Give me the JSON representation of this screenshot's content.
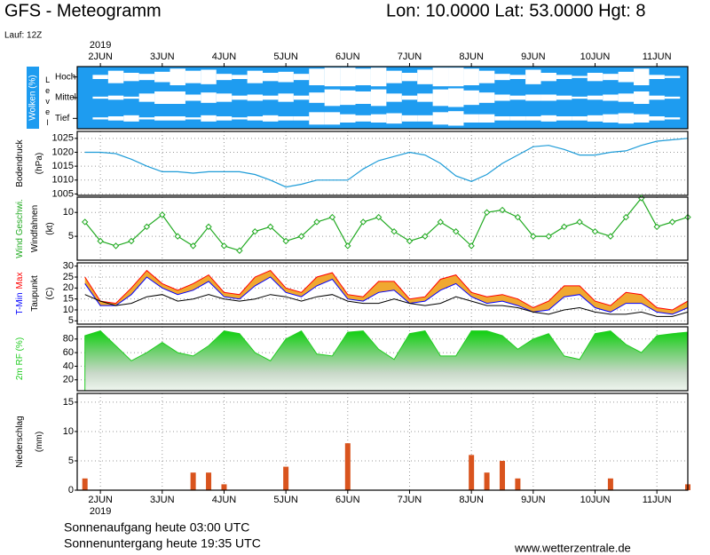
{
  "header": {
    "title": "GFS - Meteogramm",
    "location": "Lon: 10.0000 Lat: 53.0000 Hgt: 8",
    "run": "Lauf: 12Z"
  },
  "footer": {
    "sunrise": "Sonnenaufgang heute 03:00 UTC",
    "sunset": "Sonnenuntergang heute 19:35 UTC",
    "source": "www.wetterzentrale.de"
  },
  "chart_data": [
    {
      "type": "heatmap",
      "ylabel": [
        "Wolken (%)"
      ],
      "level_label": "Level",
      "background": "#1e9cf0",
      "year": "2019",
      "xlim": [
        1.625,
        11.5
      ],
      "xticks": [
        {
          "value": 2,
          "label": "2JUN"
        },
        {
          "value": 3,
          "label": "3JUN"
        },
        {
          "value": 4,
          "label": "4JUN"
        },
        {
          "value": 5,
          "label": "5JUN"
        },
        {
          "value": 6,
          "label": "6JUN"
        },
        {
          "value": 7,
          "label": "7JUN"
        },
        {
          "value": 8,
          "label": "8JUN"
        },
        {
          "value": 9,
          "label": "9JUN"
        },
        {
          "value": 10,
          "label": "10JUN"
        },
        {
          "value": 11,
          "label": "11JUN"
        }
      ],
      "x": [
        1.75,
        2,
        2.25,
        2.5,
        2.75,
        3,
        3.25,
        3.5,
        3.75,
        4,
        4.25,
        4.5,
        4.75,
        5,
        5.25,
        5.5,
        5.75,
        6,
        6.25,
        6.5,
        6.75,
        7,
        7.25,
        7.5,
        7.75,
        8,
        8.25,
        8.5,
        8.75,
        9,
        9.25,
        9.5,
        9.75,
        10,
        10.25,
        10.5,
        10.75,
        11,
        11.25,
        11.5
      ],
      "series": [
        {
          "name": "Hoch",
          "color": "#ffffff",
          "values": [
            0,
            20,
            60,
            40,
            30,
            50,
            80,
            60,
            70,
            30,
            20,
            60,
            40,
            50,
            30,
            80,
            90,
            90,
            80,
            90,
            60,
            40,
            70,
            90,
            90,
            80,
            60,
            30,
            20,
            70,
            40,
            20,
            10,
            40,
            30,
            50,
            80,
            20,
            10,
            0
          ]
        },
        {
          "name": "Mittel",
          "color": "#ffffff",
          "values": [
            0,
            10,
            20,
            10,
            40,
            60,
            60,
            30,
            50,
            40,
            20,
            30,
            20,
            40,
            20,
            50,
            80,
            70,
            60,
            80,
            40,
            20,
            40,
            80,
            90,
            70,
            50,
            30,
            20,
            30,
            30,
            20,
            10,
            20,
            30,
            40,
            60,
            20,
            10,
            0
          ]
        },
        {
          "name": "Tief",
          "color": "#ffffff",
          "values": [
            0,
            10,
            20,
            30,
            10,
            20,
            20,
            10,
            30,
            20,
            10,
            20,
            30,
            20,
            20,
            60,
            60,
            40,
            30,
            40,
            50,
            30,
            30,
            60,
            70,
            40,
            40,
            20,
            20,
            20,
            30,
            20,
            20,
            30,
            40,
            50,
            40,
            20,
            10,
            0
          ]
        }
      ]
    },
    {
      "type": "line",
      "ylabel": [
        "Bodendruck",
        "(hPa)"
      ],
      "xlim": [
        1.625,
        11.5
      ],
      "ylim": [
        1004.5,
        1027.5
      ],
      "yticks": [
        1005,
        1010,
        1015,
        1020,
        1025
      ],
      "grid": true,
      "x": [
        1.75,
        2,
        2.25,
        2.5,
        2.75,
        3,
        3.25,
        3.5,
        3.75,
        4,
        4.25,
        4.5,
        4.75,
        5,
        5.25,
        5.5,
        5.75,
        6,
        6.25,
        6.5,
        6.75,
        7,
        7.25,
        7.5,
        7.75,
        8,
        8.25,
        8.5,
        8.75,
        9,
        9.25,
        9.5,
        9.75,
        10,
        10.25,
        10.5,
        10.75,
        11,
        11.25,
        11.5
      ],
      "series": [
        {
          "color": "#1e9cd8",
          "values": [
            1020,
            1020,
            1019.5,
            1017.5,
            1015,
            1013,
            1013,
            1012.5,
            1013,
            1013,
            1013,
            1012,
            1010,
            1007.5,
            1008.5,
            1010,
            1010,
            1010,
            1014,
            1017,
            1018.5,
            1020,
            1019,
            1016,
            1011.5,
            1009.5,
            1012,
            1016,
            1019,
            1022,
            1022.5,
            1021,
            1019,
            1019,
            1020,
            1020.5,
            1022.5,
            1024,
            1024.5,
            1025
          ]
        }
      ]
    },
    {
      "type": "line",
      "ylabel": [
        "Windfahnen",
        "(kt)"
      ],
      "markers": true,
      "xlim": [
        1.625,
        11.5
      ],
      "ylim": [
        0,
        13.2
      ],
      "yticks": [
        5,
        10
      ],
      "grid": true,
      "x": [
        1.75,
        2,
        2.25,
        2.5,
        2.75,
        3,
        3.25,
        3.5,
        3.75,
        4,
        4.25,
        4.5,
        4.75,
        5,
        5.25,
        5.5,
        5.75,
        6,
        6.25,
        6.5,
        6.75,
        7,
        7.25,
        7.5,
        7.75,
        8,
        8.25,
        8.5,
        8.75,
        9,
        9.25,
        9.5,
        9.75,
        10,
        10.25,
        10.5,
        10.75,
        11,
        11.25,
        11.5
      ],
      "series": [
        {
          "name": "Wind Geschwi.",
          "color": "#22aa22",
          "values": [
            8,
            4,
            3,
            4,
            7,
            9.5,
            5,
            3,
            7,
            3,
            2,
            6,
            7,
            4,
            5,
            8,
            9,
            3,
            8,
            9,
            6,
            4,
            5,
            8,
            6,
            3,
            10,
            10.5,
            9,
            5,
            5,
            7,
            8,
            6,
            5,
            9,
            13,
            7,
            8,
            9
          ]
        }
      ]
    },
    {
      "type": "range",
      "ylabel": [
        "(C)"
      ],
      "fill_color": "#f0a830",
      "xlim": [
        1.625,
        11.5
      ],
      "ylim": [
        3.5,
        31.5
      ],
      "yticks": [
        5,
        10,
        15,
        20,
        25,
        30
      ],
      "grid": true,
      "x": [
        1.75,
        2,
        2.25,
        2.5,
        2.75,
        3,
        3.25,
        3.5,
        3.75,
        4,
        4.25,
        4.5,
        4.75,
        5,
        5.25,
        5.5,
        5.75,
        6,
        6.25,
        6.5,
        6.75,
        7,
        7.25,
        7.5,
        7.75,
        8,
        8.25,
        8.5,
        8.75,
        9,
        9.25,
        9.5,
        9.75,
        10,
        10.25,
        10.5,
        10.75,
        11,
        11.25,
        11.5
      ],
      "series": [
        {
          "name": "T-Min",
          "color": "#0000ff",
          "values": [
            22,
            12,
            12,
            17,
            25,
            20,
            17,
            19,
            23,
            16,
            15,
            21,
            25,
            18,
            16,
            21,
            24,
            15,
            14,
            18,
            19,
            13,
            14,
            19,
            22,
            16,
            13,
            14,
            12,
            9,
            10,
            16,
            17,
            11,
            9,
            13,
            13,
            9,
            8,
            11
          ]
        },
        {
          "name": "Max",
          "color": "#ff0000",
          "values": [
            25,
            14,
            13,
            20,
            28,
            22,
            19,
            22,
            26,
            18,
            17,
            25,
            28,
            20,
            18,
            25,
            27,
            17,
            16,
            23,
            23,
            15,
            16,
            24,
            26,
            18,
            16,
            17,
            15,
            11,
            14,
            21,
            21,
            14,
            12,
            18,
            17,
            11,
            10,
            14
          ]
        },
        {
          "name": "Taupunkt",
          "color": "#000000",
          "values": [
            17,
            14,
            12,
            13,
            16,
            17,
            14,
            15,
            17,
            15,
            14,
            15,
            17,
            16,
            14,
            16,
            17,
            14,
            13,
            13,
            15,
            13,
            12,
            13,
            16,
            14,
            12,
            12,
            11,
            9,
            8,
            10,
            11,
            9,
            8,
            8,
            9,
            7,
            7,
            9
          ]
        }
      ]
    },
    {
      "type": "area",
      "xlim": [
        1.625,
        11.5
      ],
      "ylim": [
        4,
        98
      ],
      "yticks": [
        20,
        40,
        60,
        80
      ],
      "grid": true,
      "x": [
        1.75,
        2,
        2.25,
        2.5,
        2.75,
        3,
        3.25,
        3.5,
        3.75,
        4,
        4.25,
        4.5,
        4.75,
        5,
        5.25,
        5.5,
        5.75,
        6,
        6.25,
        6.5,
        6.75,
        7,
        7.25,
        7.5,
        7.75,
        8,
        8.25,
        8.5,
        8.75,
        9,
        9.25,
        9.5,
        9.75,
        10,
        10.25,
        10.5,
        10.75,
        11,
        11.25,
        11.5
      ],
      "series": [
        {
          "name": "2m RF (%)",
          "color": "#22cc22",
          "values": [
            85,
            92,
            70,
            48,
            60,
            75,
            60,
            55,
            70,
            92,
            88,
            60,
            48,
            80,
            92,
            58,
            55,
            90,
            92,
            65,
            50,
            88,
            92,
            55,
            55,
            92,
            92,
            85,
            65,
            80,
            88,
            55,
            50,
            88,
            92,
            72,
            60,
            85,
            88,
            90
          ]
        }
      ]
    },
    {
      "type": "bar",
      "ylabel": [
        "Niederschlag",
        "(mm)"
      ],
      "year": "2019",
      "xlim": [
        1.625,
        11.5
      ],
      "ylim": [
        0,
        16.5
      ],
      "yticks": [
        0,
        5,
        10,
        15
      ],
      "grid": true,
      "xticks": [
        {
          "value": 2,
          "label": "2JUN"
        },
        {
          "value": 3,
          "label": "3JUN"
        },
        {
          "value": 4,
          "label": "4JUN"
        },
        {
          "value": 5,
          "label": "5JUN"
        },
        {
          "value": 6,
          "label": "6JUN"
        },
        {
          "value": 7,
          "label": "7JUN"
        },
        {
          "value": 8,
          "label": "8JUN"
        },
        {
          "value": 9,
          "label": "9JUN"
        },
        {
          "value": 10,
          "label": "10JUN"
        },
        {
          "value": 11,
          "label": "11JUN"
        }
      ],
      "x": [
        1.75,
        2,
        2.25,
        2.5,
        2.75,
        3,
        3.25,
        3.5,
        3.75,
        4,
        4.25,
        4.5,
        4.75,
        5,
        5.25,
        5.5,
        5.75,
        6,
        6.25,
        6.5,
        6.75,
        7,
        7.25,
        7.5,
        7.75,
        8,
        8.25,
        8.5,
        8.75,
        9,
        9.25,
        9.5,
        9.75,
        10,
        10.25,
        10.5,
        10.75,
        11,
        11.25,
        11.5
      ],
      "series": [
        {
          "color": "#d9541e",
          "values": [
            2,
            0,
            0,
            0,
            0,
            0,
            0,
            3,
            3,
            1,
            0,
            0,
            0,
            4,
            0,
            0,
            0,
            8,
            0,
            0,
            0,
            0,
            0,
            0,
            0,
            6,
            3,
            5,
            2,
            0,
            0,
            0,
            0,
            0,
            2,
            0,
            0,
            0,
            0,
            1
          ]
        }
      ]
    }
  ]
}
